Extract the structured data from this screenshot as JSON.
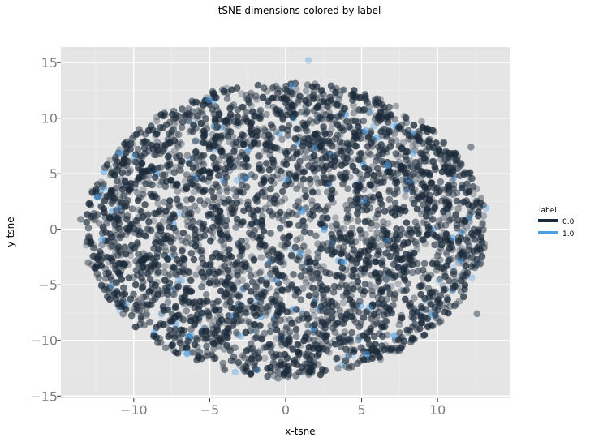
{
  "chart_data": {
    "type": "scatter",
    "title": "tSNE dimensions colored by label",
    "xlabel": "x-tsne",
    "ylabel": "y-tsne",
    "xlim": [
      -14.8,
      14.8
    ],
    "ylim": [
      -15.2,
      16.4
    ],
    "x_ticks": [
      -10,
      -5,
      0,
      5,
      10
    ],
    "y_ticks": [
      -15,
      -10,
      -5,
      0,
      5,
      10,
      15
    ],
    "x_tick_labels": [
      "−10",
      "−5",
      "0",
      "5",
      "10"
    ],
    "y_tick_labels": [
      "−15",
      "−10",
      "−5",
      "0",
      "5",
      "10",
      "15"
    ],
    "grid": true,
    "background": "#e5e5e5",
    "legend": {
      "title": "label",
      "placement": "right",
      "entries": [
        {
          "label": "0.0",
          "color": "#1b2a3a"
        },
        {
          "label": "1.0",
          "color": "#4a9fe8"
        }
      ]
    },
    "cluster_shape": "ellipse",
    "cluster_center": [
      0,
      0
    ],
    "cluster_radius_x": 13.2,
    "cluster_radius_y": 13.3,
    "series": [
      {
        "name": "0.0",
        "color": "#1b2a3a",
        "approx_count": 3400
      },
      {
        "name": "1.0",
        "color": "#4a9fe8",
        "approx_count": 130
      }
    ],
    "sample_points": [
      {
        "x": 1.5,
        "y": 15.2,
        "label": 1.0
      },
      {
        "x": -13.5,
        "y": 0.9,
        "label": 0.0
      },
      {
        "x": 13.2,
        "y": 1.9,
        "label": 1.0
      },
      {
        "x": 12.6,
        "y": -7.6,
        "label": 0.0
      },
      {
        "x": 12.2,
        "y": 7.4,
        "label": 0.0
      },
      {
        "x": -0.5,
        "y": -13.4,
        "label": 0.0
      },
      {
        "x": -13.0,
        "y": -3.0,
        "label": 0.0
      },
      {
        "x": -3.2,
        "y": 4.4,
        "label": 1.0
      }
    ]
  }
}
